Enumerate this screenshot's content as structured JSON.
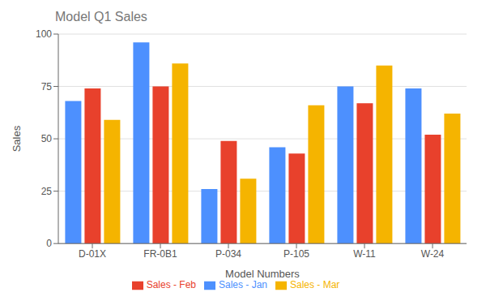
{
  "chart_data": {
    "type": "bar",
    "title": "Model Q1 Sales",
    "xlabel": "Model Numbers",
    "ylabel": "Sales",
    "categories": [
      "D-01X",
      "FR-0B1",
      "P-034",
      "P-105",
      "W-11",
      "W-24"
    ],
    "series": [
      {
        "name": "Sales - Jan",
        "color": "#4D90FE",
        "values": [
          68,
          96,
          26,
          46,
          75,
          74
        ]
      },
      {
        "name": "Sales - Feb",
        "color": "#E8412C",
        "values": [
          74,
          75,
          49,
          43,
          67,
          52
        ]
      },
      {
        "name": "Sales - Mar",
        "color": "#F5B400",
        "values": [
          59,
          86,
          31,
          66,
          85,
          62
        ]
      }
    ],
    "ylim": [
      0,
      100
    ],
    "yticks": [
      0,
      25,
      50,
      75,
      100
    ],
    "grid": true,
    "legend": "bottom"
  }
}
